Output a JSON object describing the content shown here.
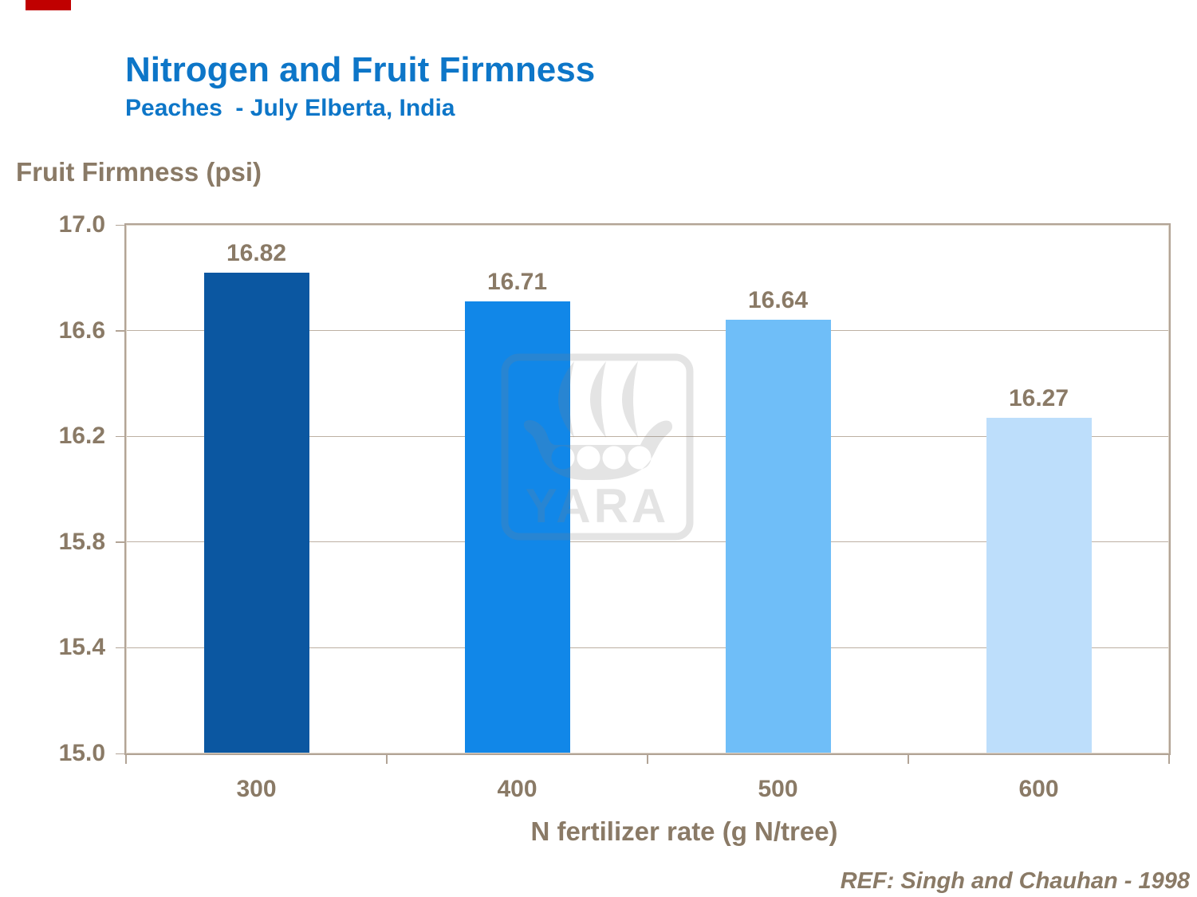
{
  "slide": {
    "title": "Nitrogen and Fruit Firmness",
    "subtitle": "Peaches  - July Elberta, India",
    "y_axis_title": "Fruit Firmness (psi)",
    "x_axis_title": "N fertilizer rate (g N/tree)",
    "reference": "REF: Singh and Chauhan - 1998"
  },
  "colors": {
    "accent-red": "#c00000",
    "title-blue": "#0d76c8",
    "text-brown": "#8a7a66",
    "border-tan": "#b2a496",
    "grid-tan": "#bdb0a3",
    "watermark-gray": "rgba(127,127,127,0.21)"
  },
  "chart_data": {
    "type": "bar",
    "title": "Nitrogen and Fruit Firmness",
    "subtitle": "Peaches - July Elberta, India",
    "ylabel": "Fruit Firmness (psi)",
    "xlabel": "N fertilizer rate (g N/tree)",
    "categories": [
      "300",
      "400",
      "500",
      "600"
    ],
    "values": [
      16.82,
      16.71,
      16.64,
      16.27
    ],
    "data_labels": [
      "16.82",
      "16.71",
      "16.64",
      "16.27"
    ],
    "bar_colors": [
      "#0b57a1",
      "#1187e8",
      "#6fbef8",
      "#bddefb"
    ],
    "ylim": [
      15.0,
      17.0
    ],
    "yticks": [
      17.0,
      16.6,
      16.2,
      15.8,
      15.4,
      15.0
    ],
    "ytick_labels": [
      "17.0",
      "16.6",
      "16.2",
      "15.8",
      "15.4",
      "15.0"
    ],
    "grid": true,
    "legend": "none",
    "watermark_text": "YARA",
    "reference": "REF: Singh and Chauhan - 1998"
  }
}
